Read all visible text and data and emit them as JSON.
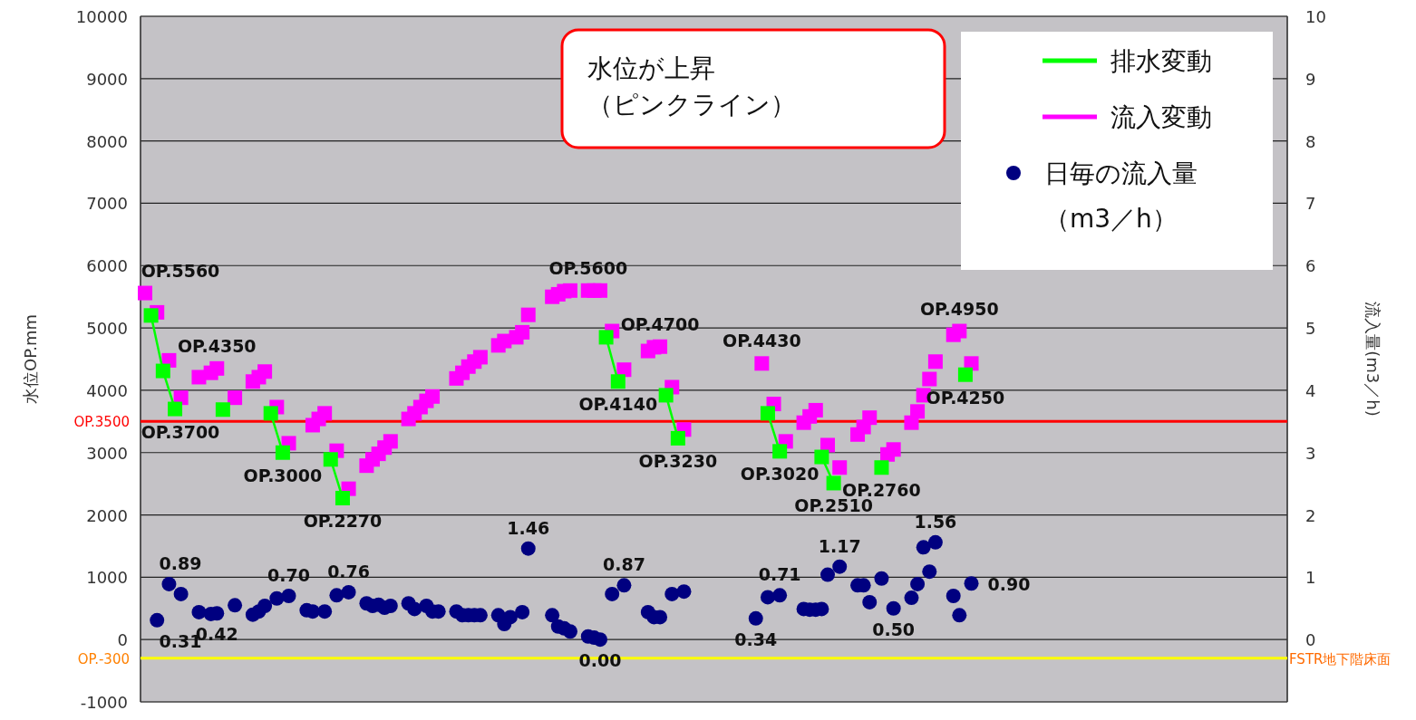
{
  "chart_data": {
    "type": "scatter",
    "ylabel": "水位OP.mm",
    "y2label": "流入量(m3／h)",
    "categories": [
      null,
      null,
      null,
      null,
      null,
      null,
      null,
      null,
      null,
      null,
      null,
      null,
      null,
      null,
      null,
      null,
      null,
      null,
      null,
      null,
      null,
      null,
      null,
      null,
      null,
      null,
      null,
      null,
      null,
      null,
      null,
      null,
      null,
      null,
      null,
      null,
      null,
      null,
      null,
      null,
      null,
      null,
      null,
      null,
      null,
      null,
      null,
      null,
      null,
      null,
      null,
      null,
      null,
      null,
      null,
      null,
      null,
      null,
      null,
      null,
      null,
      null,
      null,
      null,
      null,
      null,
      null,
      null,
      null,
      null,
      null,
      null,
      null,
      null,
      null,
      null,
      null,
      null,
      null,
      null,
      null,
      null,
      null,
      null,
      null,
      null,
      null,
      null,
      null,
      null,
      null,
      null,
      null,
      null,
      null,
      null,
      null,
      null,
      null,
      null,
      null,
      null,
      null,
      null,
      null,
      null,
      null,
      null,
      null,
      null,
      null,
      null,
      null,
      null,
      null,
      null,
      null,
      null,
      null,
      null,
      null,
      null,
      null,
      null,
      null,
      null,
      null,
      null,
      null,
      null,
      null,
      null,
      null,
      null,
      null,
      null,
      null,
      null,
      null,
      null,
      null,
      null,
      null,
      null,
      null,
      null,
      null,
      null,
      null,
      null,
      null,
      null,
      null,
      null,
      null,
      null,
      null,
      null,
      null,
      null,
      null,
      null,
      null,
      null,
      null,
      null,
      null,
      null,
      null,
      null,
      null,
      null,
      null,
      null,
      null,
      null,
      null,
      null,
      null,
      null,
      null,
      null,
      null,
      null,
      null,
      null,
      null,
      null,
      null,
      null,
      null
    ],
    "series": [
      {
        "name": "排水変動",
        "type": "line",
        "marker": "square",
        "color": "#00ff00",
        "values": [
          null,
          5200,
          null,
          4310,
          null,
          3700,
          null,
          null,
          null,
          null,
          null,
          null,
          null,
          3690,
          null,
          null,
          null,
          null,
          null,
          null,
          null,
          3630,
          null,
          3000,
          null,
          null,
          null,
          null,
          null,
          null,
          null,
          2890,
          null,
          2270,
          null,
          null,
          null,
          null,
          null,
          null,
          null,
          null,
          null,
          null,
          null,
          null,
          null,
          null,
          null,
          null,
          null,
          null,
          null,
          null,
          null,
          null,
          null,
          null,
          null,
          null,
          null,
          null,
          null,
          null,
          null,
          null,
          null,
          null,
          null,
          null,
          null,
          null,
          null,
          null,
          null,
          null,
          null,
          4850,
          null,
          4140,
          null,
          null,
          null,
          null,
          null,
          null,
          null,
          3920,
          null,
          3230,
          null,
          null,
          null,
          null,
          null,
          null,
          null,
          null,
          null,
          null,
          null,
          null,
          null,
          null,
          3630,
          null,
          3020,
          null,
          null,
          null,
          null,
          null,
          null,
          2930,
          null,
          2510,
          null,
          null,
          null,
          null,
          null,
          null,
          null,
          2760,
          null,
          null,
          null,
          null,
          null,
          null,
          null,
          null,
          null,
          null,
          null,
          null,
          null,
          4250,
          null,
          null,
          null,
          null,
          null,
          null,
          null,
          null,
          null,
          null,
          null,
          null,
          null,
          null,
          null,
          null,
          null,
          null,
          null,
          null,
          null,
          null,
          null,
          null,
          null,
          null,
          null,
          null,
          null,
          null,
          null,
          null,
          null,
          null,
          null,
          null,
          null,
          null,
          null,
          null,
          null,
          null,
          null,
          null,
          null,
          null,
          null,
          null,
          null,
          null,
          null,
          null,
          null
        ],
        "value_labels": [
          null,
          null,
          null,
          null,
          null,
          "OP.3700",
          null,
          null,
          null,
          null,
          null,
          null,
          null,
          null,
          null,
          null,
          null,
          null,
          null,
          null,
          null,
          null,
          null,
          "OP.3000",
          null,
          null,
          null,
          null,
          null,
          null,
          null,
          null,
          null,
          "OP.2270",
          null,
          null,
          null,
          null,
          null,
          null,
          null,
          null,
          null,
          null,
          null,
          null,
          null,
          null,
          null,
          null,
          null,
          null,
          null,
          null,
          null,
          null,
          null,
          null,
          null,
          null,
          null,
          null,
          null,
          null,
          null,
          null,
          null,
          null,
          null,
          null,
          null,
          null,
          null,
          null,
          null,
          null,
          null,
          null,
          null,
          "OP.4140",
          null,
          null,
          null,
          null,
          null,
          null,
          null,
          null,
          null,
          "OP.3230",
          null,
          null,
          null,
          null,
          null,
          null,
          null,
          null,
          null,
          null,
          null,
          null,
          null,
          null,
          null,
          null,
          "OP.3020",
          null,
          null,
          null,
          null,
          null,
          null,
          null,
          null,
          "OP.2510",
          null,
          null,
          null,
          null,
          null,
          null,
          null,
          "OP.2760",
          null,
          null,
          null,
          null,
          null,
          null,
          null,
          null,
          null,
          null,
          null,
          null,
          null,
          "OP.4250",
          null,
          null,
          null,
          null,
          null,
          null,
          null,
          null,
          null,
          null,
          null,
          null,
          null,
          null,
          null,
          null,
          null,
          null,
          null,
          null,
          null,
          null,
          null,
          null,
          null,
          null,
          null,
          null,
          null,
          null,
          null,
          null,
          null,
          null,
          null,
          null,
          null,
          null,
          null,
          null,
          null,
          null,
          null,
          null,
          null,
          null,
          null,
          null,
          null,
          null,
          null,
          null,
          null
        ]
      },
      {
        "name": "流入変動",
        "marker": "square",
        "color": "#ff00ff",
        "values": [
          5560,
          null,
          5250,
          null,
          4480,
          null,
          3880,
          null,
          null,
          4210,
          null,
          4280,
          4350,
          null,
          null,
          3880,
          null,
          null,
          4140,
          4210,
          4300,
          null,
          3730,
          null,
          3150,
          null,
          null,
          null,
          3440,
          3540,
          3630,
          null,
          3030,
          null,
          2420,
          null,
          null,
          2790,
          2890,
          2980,
          3080,
          3180,
          null,
          null,
          3540,
          3630,
          3730,
          3830,
          3900,
          null,
          null,
          null,
          4190,
          4280,
          4380,
          4460,
          4530,
          null,
          null,
          4720,
          4790,
          null,
          4850,
          4930,
          5210,
          null,
          null,
          null,
          5500,
          5540,
          5590,
          5600,
          null,
          null,
          5600,
          5600,
          5600,
          null,
          4950,
          null,
          4330,
          null,
          null,
          null,
          4630,
          4690,
          4700,
          null,
          4050,
          null,
          3370,
          null,
          null,
          null,
          null,
          null,
          null,
          null,
          null,
          null,
          null,
          null,
          null,
          4430,
          null,
          3780,
          null,
          3180,
          null,
          null,
          3480,
          3580,
          3680,
          null,
          3120,
          null,
          2760,
          null,
          null,
          3290,
          3410,
          3560,
          null,
          null,
          2970,
          3050,
          null,
          null,
          3480,
          3660,
          3920,
          4180,
          4460,
          null,
          null,
          4890,
          4950,
          null,
          4430,
          null,
          null,
          null,
          null,
          null,
          null,
          null,
          null,
          null,
          null,
          null,
          null,
          null,
          null,
          null,
          null,
          null,
          null,
          null,
          null,
          null,
          null,
          null,
          null,
          null,
          null,
          null,
          null,
          null,
          null,
          null,
          null,
          null,
          null,
          null,
          null,
          null,
          null,
          null,
          null,
          null,
          null,
          null,
          null,
          null,
          null,
          null,
          null,
          null,
          null,
          null,
          null
        ],
        "value_labels": [
          "OP.5560",
          null,
          null,
          null,
          null,
          null,
          null,
          null,
          null,
          null,
          null,
          null,
          "OP.4350",
          null,
          null,
          null,
          null,
          null,
          null,
          null,
          null,
          null,
          null,
          null,
          null,
          null,
          null,
          null,
          null,
          null,
          null,
          null,
          null,
          null,
          null,
          null,
          null,
          null,
          null,
          null,
          null,
          null,
          null,
          null,
          null,
          null,
          null,
          null,
          null,
          null,
          null,
          null,
          null,
          null,
          null,
          null,
          null,
          null,
          null,
          null,
          null,
          null,
          null,
          null,
          null,
          null,
          null,
          null,
          null,
          null,
          null,
          null,
          null,
          null,
          "OP.5600",
          null,
          null,
          null,
          null,
          null,
          null,
          null,
          null,
          null,
          null,
          null,
          "OP.4700",
          null,
          null,
          null,
          null,
          null,
          null,
          null,
          null,
          null,
          null,
          null,
          null,
          null,
          null,
          null,
          null,
          "OP.4430",
          null,
          null,
          null,
          null,
          null,
          null,
          null,
          null,
          null,
          null,
          null,
          null,
          null,
          null,
          null,
          null,
          null,
          null,
          null,
          null,
          null,
          null,
          null,
          null,
          null,
          null,
          null,
          null,
          null,
          null,
          null,
          null,
          "OP.4950",
          null,
          null,
          null,
          null,
          null,
          null,
          null,
          null,
          null,
          null,
          null,
          null,
          null,
          null,
          null,
          null,
          null,
          null,
          null,
          null,
          null,
          null,
          null,
          null,
          null,
          null,
          null,
          null,
          null,
          null,
          null,
          null,
          null,
          null,
          null,
          null,
          null,
          null,
          null,
          null,
          null,
          null,
          null,
          null,
          null,
          null,
          null,
          null,
          null,
          null,
          null,
          null,
          null,
          null
        ]
      },
      {
        "name": "日毎の流入量（m3／h）",
        "marker": "circle",
        "axis": "y2",
        "color": "#000080",
        "values": [
          null,
          null,
          0.31,
          null,
          0.89,
          null,
          0.73,
          null,
          null,
          0.44,
          null,
          0.41,
          0.42,
          null,
          null,
          0.55,
          null,
          null,
          0.4,
          0.45,
          0.54,
          null,
          0.66,
          null,
          0.7,
          null,
          null,
          0.47,
          0.45,
          null,
          0.45,
          null,
          0.71,
          null,
          0.76,
          null,
          null,
          0.58,
          0.54,
          0.56,
          0.51,
          0.54,
          null,
          null,
          0.58,
          0.49,
          null,
          0.54,
          0.45,
          0.45,
          null,
          null,
          0.45,
          0.39,
          0.39,
          0.39,
          0.39,
          null,
          null,
          0.39,
          0.25,
          0.36,
          null,
          0.44,
          1.46,
          null,
          null,
          null,
          0.39,
          0.21,
          0.18,
          0.13,
          null,
          null,
          0.05,
          0.03,
          0,
          null,
          0.73,
          null,
          0.87,
          null,
          null,
          null,
          0.44,
          0.36,
          0.36,
          null,
          0.73,
          null,
          0.77,
          null,
          null,
          null,
          null,
          null,
          null,
          null,
          null,
          null,
          null,
          null,
          0.34,
          null,
          0.68,
          null,
          0.71,
          null,
          null,
          null,
          0.49,
          0.48,
          0.48,
          0.49,
          1.04,
          null,
          1.17,
          null,
          null,
          0.87,
          0.87,
          0.6,
          null,
          0.98,
          null,
          0.5,
          null,
          null,
          0.67,
          0.89,
          1.48,
          1.09,
          1.56,
          null,
          null,
          0.7,
          0.39,
          null,
          0.9,
          null,
          null,
          null,
          null,
          null,
          null,
          null,
          null,
          null,
          null,
          null,
          null,
          null,
          null,
          null,
          null,
          null,
          null,
          null,
          null,
          null,
          null,
          null,
          null,
          null,
          null,
          null,
          null,
          null,
          null,
          null,
          null,
          null,
          null,
          null,
          null,
          null,
          null,
          null,
          null,
          null,
          null,
          null,
          null,
          null,
          null,
          null,
          null,
          null,
          null,
          null,
          null
        ],
        "value_labels": [
          null,
          null,
          "0.31",
          null,
          "0.89",
          null,
          null,
          null,
          null,
          null,
          null,
          null,
          "0.42",
          null,
          null,
          null,
          null,
          null,
          null,
          null,
          null,
          null,
          null,
          null,
          "0.70",
          null,
          null,
          null,
          null,
          null,
          null,
          null,
          null,
          null,
          "0.76",
          null,
          null,
          null,
          null,
          null,
          null,
          null,
          null,
          null,
          null,
          null,
          null,
          null,
          null,
          null,
          null,
          null,
          null,
          null,
          null,
          null,
          null,
          null,
          null,
          null,
          null,
          null,
          null,
          null,
          "1.46",
          null,
          null,
          null,
          null,
          null,
          null,
          null,
          null,
          null,
          null,
          null,
          "0.00",
          null,
          null,
          null,
          "0.87",
          null,
          null,
          null,
          null,
          null,
          null,
          null,
          null,
          null,
          null,
          null,
          null,
          null,
          null,
          null,
          null,
          null,
          null,
          null,
          null,
          null,
          "0.34",
          null,
          null,
          null,
          "0.71",
          null,
          null,
          null,
          null,
          null,
          null,
          null,
          null,
          null,
          "1.17",
          null,
          null,
          null,
          null,
          null,
          null,
          null,
          null,
          "0.50",
          null,
          null,
          null,
          null,
          null,
          null,
          "1.56",
          null,
          null,
          null,
          null,
          null,
          "0.90",
          null,
          null,
          null,
          null,
          null,
          null,
          null,
          null,
          null,
          null,
          null,
          null,
          null,
          null,
          null,
          null,
          null,
          null,
          null,
          null,
          null,
          null,
          null,
          null,
          null,
          null,
          null,
          null,
          null,
          null,
          null,
          null,
          null,
          null,
          null,
          null,
          null,
          null,
          null,
          null,
          null,
          null,
          null,
          null,
          null,
          null,
          null,
          null,
          null,
          null,
          null,
          null
        ]
      }
    ],
    "ylim": [
      -1000,
      10000
    ],
    "yticks": [
      -1000,
      0,
      1000,
      2000,
      3000,
      4000,
      5000,
      6000,
      7000,
      8000,
      9000,
      10000
    ],
    "y2lim": [
      -1,
      10
    ],
    "y2ticks": [
      0,
      1,
      2,
      3,
      4,
      5,
      6,
      7,
      8,
      9,
      10
    ],
    "grid": "y",
    "legend": "top right",
    "ref_lines": [
      {
        "axis": "y",
        "value": 3500,
        "label": "OP.3500",
        "color": "#ff0000"
      },
      {
        "axis": "y",
        "value": -300,
        "label": "OP.-300",
        "color": "#ffff00"
      }
    ],
    "annotations": [
      "水位が上昇（ピンクライン）",
      "FSTR地下階床面"
    ]
  }
}
